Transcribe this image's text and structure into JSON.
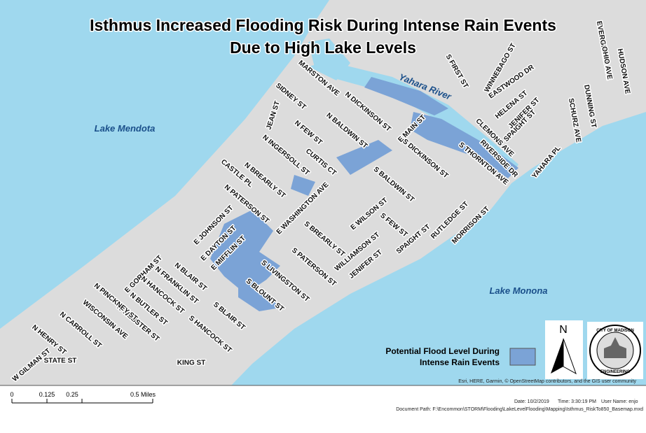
{
  "title": {
    "line1": "Isthmus Increased Flooding Risk During Intense Rain Events",
    "line2": "Due to High Lake Levels"
  },
  "water": {
    "lake_mendota": "Lake Mendota",
    "lake_monona": "Lake Monona",
    "river": "Yahara River"
  },
  "streets": [
    "MARSTON AVE",
    "SIDNEY ST",
    "N DICKINSON ST",
    "JEAN ST",
    "N BALDWIN ST",
    "N FEW ST",
    "N INGERSOLL ST",
    "CURTIS CT",
    "N BREARLY ST",
    "CASTLE PL",
    "N PATERSON ST",
    "E WASHINGTON AVE",
    "E JOHNSON ST",
    "E DAYTON ST",
    "E MIFFLIN ST",
    "E GORHAM ST",
    "N BLAIR ST",
    "N FRANKLIN ST",
    "N HANCOCK ST",
    "N BUTLER ST",
    "N WEBSTER ST",
    "N PINCKNEY ST",
    "WISCONSIN AVE",
    "N CARROLL ST",
    "N HENRY ST",
    "W GILMAN ST",
    "STATE ST",
    "KING ST",
    "S HANCOCK ST",
    "S BLAIR ST",
    "S BLOUNT ST",
    "S LIVINGSTON ST",
    "S PATERSON ST",
    "S BREARLY ST",
    "WILLIAMSON ST",
    "JENIFER ST",
    "E WILSON ST",
    "S FEW ST",
    "SPAIGHT ST",
    "S BALDWIN ST",
    "S DICKINSON ST",
    "E MAIN ST",
    "S THORNTON AVE",
    "RUTLEDGE ST",
    "MORRISON ST",
    "RIVERSIDE DR",
    "CLEMONS AVE",
    "SPAIGHT ST",
    "JENIFER ST",
    "HELENA ST",
    "EASTWOOD DR",
    "WINNEBAGO ST",
    "S FIRST ST",
    "YAHARA PL",
    "SCHURZ AVE",
    "DUNNING ST",
    "EVERGREEN AVE",
    "OHIO AVE",
    "HUDSON AVE"
  ],
  "legend": {
    "line1": "Potential Flood Level During",
    "line2": "Intense Rain Events"
  },
  "north": "N",
  "seal": {
    "top": "CITY OF MADISON",
    "bottom": "ENGINEERING"
  },
  "attribution": "Esri, HERE, Garmin, © OpenStreetMap contributors, and the GIS user community",
  "scale": {
    "labels": [
      "0",
      "0.125",
      "0.25",
      "0.5 Miles"
    ]
  },
  "footer": {
    "date": "Date: 10/2/2019",
    "time": "Time: 3:30:19 PM",
    "user": "User Name: enjo",
    "path": "Document Path: F:\\Encommon\\STORM\\Flooding\\LakeLevelFlooding\\Mapping\\Isthmus_RiskTo850_Basemap.mxd"
  }
}
